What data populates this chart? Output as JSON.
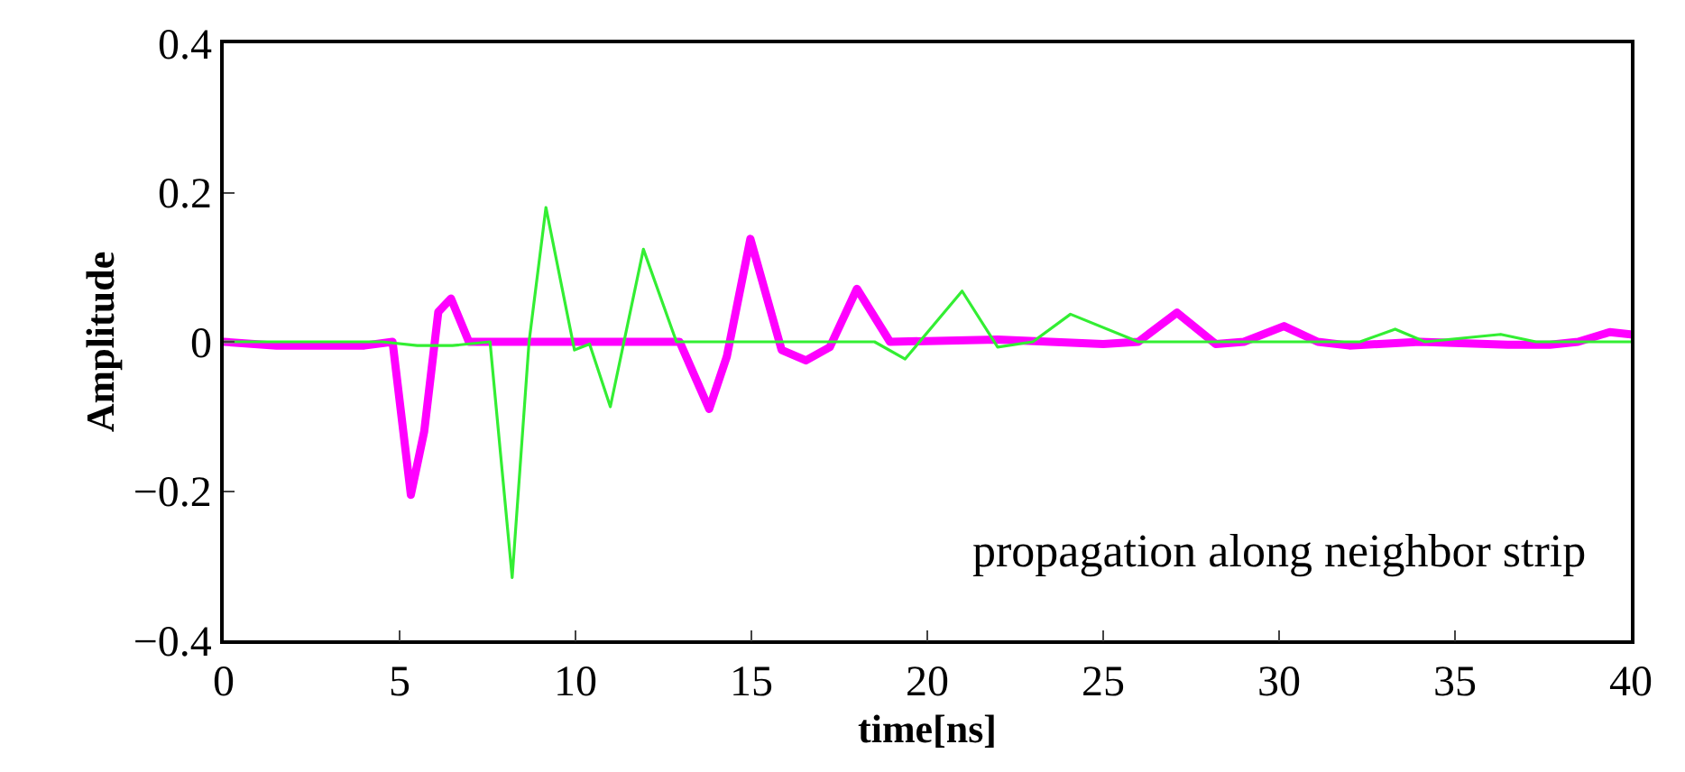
{
  "chart_data": {
    "type": "line",
    "xlabel": "time[ns]",
    "ylabel": "Amplitude",
    "annotations": [
      "propagation along neighbor strip"
    ],
    "xlim": [
      0,
      40
    ],
    "ylim": [
      -0.4,
      0.4
    ],
    "xticks": [
      0,
      5,
      10,
      15,
      20,
      25,
      30,
      35,
      40
    ],
    "yticks": [
      {
        "value": -0.4,
        "label": "−0.4"
      },
      {
        "value": -0.2,
        "label": "−0.2"
      },
      0,
      0.2,
      0.4
    ],
    "marker": "none",
    "line_style": "solid",
    "series": [
      {
        "color": "#ff00ff",
        "x": [
          0,
          1.5,
          4.0,
          4.8,
          5.32,
          5.7,
          6.1,
          6.46,
          6.97,
          9,
          11,
          12.96,
          13.8,
          14.3,
          14.97,
          15.86,
          16.55,
          17.23,
          18.0,
          18.94,
          22,
          25,
          26,
          27.1,
          28.2,
          29.0,
          30.14,
          31.1,
          32,
          34,
          36.5,
          37.7,
          38.5,
          39.4,
          40
        ],
        "values": [
          0,
          -0.005,
          -0.005,
          0,
          -0.205,
          -0.12,
          0.04,
          0.058,
          0,
          0,
          0,
          0,
          -0.09,
          -0.02,
          0.138,
          -0.011,
          -0.025,
          -0.007,
          0.071,
          0,
          0.003,
          -0.003,
          0,
          0.039,
          -0.003,
          0,
          0.021,
          0,
          -0.005,
          0,
          -0.004,
          -0.004,
          0,
          0.013,
          0.01
        ]
      },
      {
        "color": "#33ee33",
        "x": [
          0,
          4.5,
          5.5,
          6.5,
          7.57,
          8.2,
          8.68,
          9.16,
          9.97,
          10.4,
          10.99,
          11.93,
          12.87,
          15,
          18.5,
          19.37,
          20.99,
          22.0,
          23,
          24.07,
          26.0,
          32.3,
          33.3,
          34.15,
          36.3,
          37.3,
          40
        ],
        "values": [
          0,
          0,
          -0.005,
          -0.005,
          0,
          -0.316,
          0,
          0.18,
          -0.011,
          -0.003,
          -0.087,
          0.124,
          0,
          0,
          0,
          -0.023,
          0.068,
          -0.007,
          0,
          0.037,
          0,
          0,
          0.017,
          0,
          0.01,
          0,
          0
        ]
      }
    ]
  }
}
